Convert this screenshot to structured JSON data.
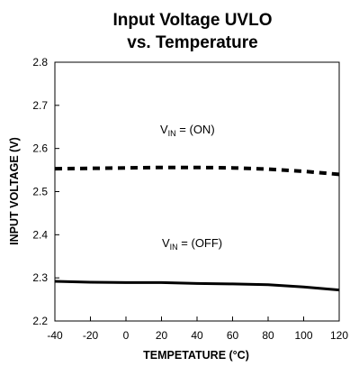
{
  "chart_data": {
    "type": "line",
    "title_line1": "Input Voltage UVLO",
    "title_line2": "vs. Temperature",
    "xlabel": "TEMPETATURE (°C)",
    "ylabel": "INPUT VOLTAGE (V)",
    "xlim": [
      -40,
      120
    ],
    "ylim": [
      2.2,
      2.8
    ],
    "x_ticks": [
      -40,
      -20,
      0,
      20,
      40,
      60,
      80,
      100,
      120
    ],
    "x_tick_labels": [
      "-40",
      "-20",
      "0",
      "20",
      "40",
      "60",
      "80",
      "100",
      "120"
    ],
    "y_ticks": [
      2.2,
      2.3,
      2.4,
      2.5,
      2.6,
      2.7,
      2.8
    ],
    "y_tick_labels": [
      "2.2",
      "2.3",
      "2.4",
      "2.5",
      "2.6",
      "2.7",
      "2.8"
    ],
    "grid": false,
    "legend": "none",
    "series": [
      {
        "label_main": "V",
        "label_sub": "IN",
        "label_rest": " = (ON)",
        "style": "dashed",
        "color": "#000000",
        "x": [
          -40,
          -20,
          0,
          20,
          40,
          60,
          80,
          100,
          120
        ],
        "y": [
          2.553,
          2.554,
          2.555,
          2.556,
          2.556,
          2.555,
          2.552,
          2.547,
          2.54
        ]
      },
      {
        "label_main": "V",
        "label_sub": "IN",
        "label_rest": " = (OFF)",
        "style": "solid",
        "color": "#000000",
        "x": [
          -40,
          -20,
          0,
          20,
          40,
          60,
          80,
          100,
          120
        ],
        "y": [
          2.292,
          2.29,
          2.289,
          2.289,
          2.287,
          2.286,
          2.284,
          2.279,
          2.272
        ]
      }
    ]
  }
}
